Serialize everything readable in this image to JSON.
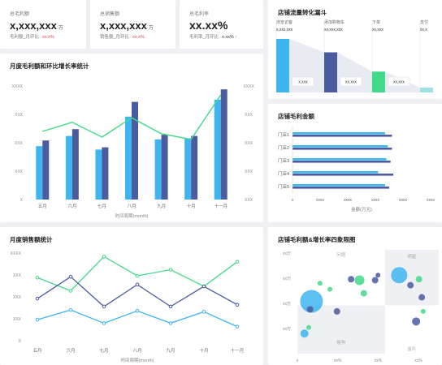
{
  "colors": {
    "blue": "#3fb5f0",
    "navy": "#4a5ba0",
    "green": "#43d98a",
    "red": "#e5484d"
  },
  "kpis": [
    {
      "label": "总毛利额",
      "value": "x,xxx,xxx",
      "unit": "万",
      "sub_label": "毛利额_月环比",
      "sub_value": "xx.x%",
      "sub_color": "red"
    },
    {
      "label": "总销售额",
      "value": "x,xxx,xxx",
      "unit": "万",
      "sub_label": "销售额_月环比",
      "sub_value": "xx.x%",
      "sub_color": "red"
    },
    {
      "label": "总毛利率",
      "value": "xx.xx%",
      "unit": "",
      "sub_label": "毛利率_月环比",
      "sub_value": "x.xx%",
      "sub_color": "dark",
      "arrow": "↑"
    }
  ],
  "chart_data": [
    {
      "type": "bar",
      "title": "月度毛利额和环比增长率统计",
      "categories": [
        "五月",
        "六月",
        "七月",
        "八月",
        "九月",
        "十月",
        "十一月"
      ],
      "series": [
        {
          "values": [
            47,
            56,
            44,
            73,
            53,
            54,
            88
          ],
          "type": "bar"
        },
        {
          "values": [
            52,
            62,
            46,
            86,
            57,
            56,
            97
          ],
          "type": "bar"
        },
        {
          "values": [
            60,
            68,
            55,
            72,
            58,
            53,
            92
          ],
          "type": "line"
        }
      ],
      "y_left_ticks": [
        "X",
        "XXX",
        "XXX",
        "XXX",
        "XXXX"
      ],
      "y_right_ticks": [
        "XXX",
        "XXX",
        "XXX",
        "XXX",
        "XXXX"
      ],
      "xlabel": "时间周期(month)",
      "ylim": [
        0,
        100
      ]
    },
    {
      "type": "area",
      "title": "店铺流量转化漏斗",
      "stages": [
        {
          "name": "浏览访客",
          "value_top": "x,xxx,xxx",
          "bar_label": "x,xxx",
          "level": 100
        },
        {
          "name": "添加购物车",
          "value_top": "xx,xxx,xxx",
          "bar_label": "xx,xxx",
          "level": 75
        },
        {
          "name": "下单",
          "value_top": "xx,xxx",
          "bar_label": "xx,xxx",
          "level": 39
        },
        {
          "name": "支付",
          "value_top": "xx,x",
          "bar_label": "",
          "level": 9
        }
      ]
    },
    {
      "type": "bar",
      "title": "店铺毛利金额",
      "categories": [
        "门店1",
        "门店2",
        "门店3",
        "门店4",
        "门店5"
      ],
      "series": [
        {
          "values": [
            67,
            69,
            68,
            62,
            67
          ]
        },
        {
          "values": [
            72,
            72,
            71,
            73,
            70
          ]
        }
      ],
      "x_ticks": [
        "x",
        "xxxx",
        "xxxx",
        "xxxx",
        "xxxx",
        "xxxx"
      ],
      "xlabel": "金额(万元)"
    },
    {
      "type": "line",
      "title": "月度销售额统计",
      "categories": [
        "五月",
        "六月",
        "七月",
        "八月",
        "九月",
        "十月",
        "十一月"
      ],
      "series": [
        {
          "values": [
            72,
            57,
            96,
            74,
            81,
            62,
            90
          ]
        },
        {
          "values": [
            48,
            73,
            39,
            64,
            39,
            62,
            41
          ]
        },
        {
          "values": [
            24,
            35,
            20,
            34,
            20,
            33,
            16
          ]
        }
      ],
      "y_ticks": [
        "X",
        "XXX",
        "XXX",
        "XXX",
        "XXXX"
      ],
      "xlabel": "时间周期(month)",
      "ylim": [
        0,
        100
      ]
    },
    {
      "type": "scatter",
      "title": "店铺毛利额&增长率四象限图",
      "quadrant_labels": [
        "问题",
        "明星",
        "瘦狗",
        "金牛"
      ],
      "y_ticks": [
        "xx万",
        "xx万",
        "xx万",
        "xx万"
      ],
      "x_ticks": [
        "x",
        "xx%",
        "xx%",
        "xx%"
      ],
      "xlim": [
        0,
        100
      ],
      "ylim": [
        0,
        100
      ],
      "points": [
        {
          "x": 10,
          "y": 52,
          "r": 14,
          "c": "blue"
        },
        {
          "x": 5,
          "y": 20,
          "r": 5,
          "c": "blue"
        },
        {
          "x": 9,
          "y": 44,
          "r": 4,
          "c": "navy"
        },
        {
          "x": 28,
          "y": 42,
          "r": 4,
          "c": "navy"
        },
        {
          "x": 55,
          "y": 73,
          "r": 4,
          "c": "navy"
        },
        {
          "x": 57,
          "y": 78,
          "r": 3,
          "c": "navy"
        },
        {
          "x": 72,
          "y": 78,
          "r": 10,
          "c": "blue"
        },
        {
          "x": 80,
          "y": 68,
          "r": 4,
          "c": "navy"
        },
        {
          "x": 84,
          "y": 32,
          "r": 5,
          "c": "navy"
        },
        {
          "x": 86,
          "y": 74,
          "r": 4,
          "c": "green"
        },
        {
          "x": 88,
          "y": 56,
          "r": 4,
          "c": "navy"
        },
        {
          "x": 89,
          "y": 42,
          "r": 3,
          "c": "green"
        },
        {
          "x": 44,
          "y": 73,
          "r": 6,
          "c": "green"
        },
        {
          "x": 38,
          "y": 74,
          "r": 4,
          "c": "navy"
        },
        {
          "x": 16,
          "y": 70,
          "r": 3,
          "c": "green"
        },
        {
          "x": 23,
          "y": 64,
          "r": 3,
          "c": "green"
        },
        {
          "x": 47,
          "y": 60,
          "r": 4,
          "c": "green"
        },
        {
          "x": 8,
          "y": 26,
          "r": 3,
          "c": "green"
        }
      ]
    }
  ]
}
